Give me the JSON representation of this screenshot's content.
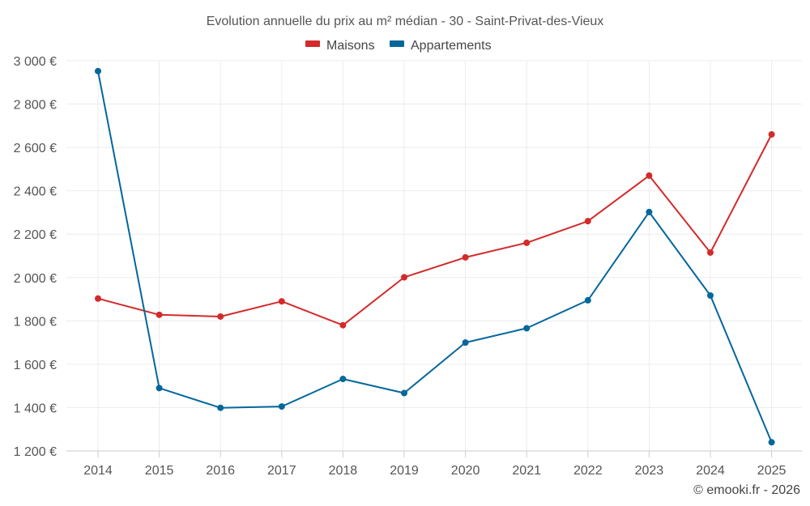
{
  "chart_data": {
    "type": "line",
    "title": "Evolution annuelle du prix au m² médian - 30 - Saint-Privat-des-Vieux",
    "categories": [
      "2014",
      "2015",
      "2016",
      "2017",
      "2018",
      "2019",
      "2020",
      "2021",
      "2022",
      "2023",
      "2024",
      "2025"
    ],
    "series": [
      {
        "name": "Maisons",
        "color": "#d42a2a",
        "values": [
          1903,
          1828,
          1820,
          1890,
          1780,
          2001,
          2093,
          2160,
          2260,
          2470,
          2115,
          2660
        ]
      },
      {
        "name": "Appartements",
        "color": "#04679b",
        "values": [
          2952,
          1490,
          1399,
          1405,
          1532,
          1467,
          1700,
          1766,
          1895,
          2302,
          1917,
          1240
        ]
      }
    ],
    "ylim": [
      1200,
      3000
    ],
    "yticks": [
      1200,
      1400,
      1600,
      1800,
      2000,
      2200,
      2400,
      2600,
      2800,
      3000
    ],
    "ytick_labels": [
      "1 200 €",
      "1 400 €",
      "1 600 €",
      "1 800 €",
      "2 000 €",
      "2 200 €",
      "2 400 €",
      "2 600 €",
      "2 800 €",
      "3 000 €"
    ],
    "xlabel": "",
    "ylabel": "",
    "grid": true,
    "legend_position": "top-center",
    "credit": "© emooki.fr - 2026"
  }
}
